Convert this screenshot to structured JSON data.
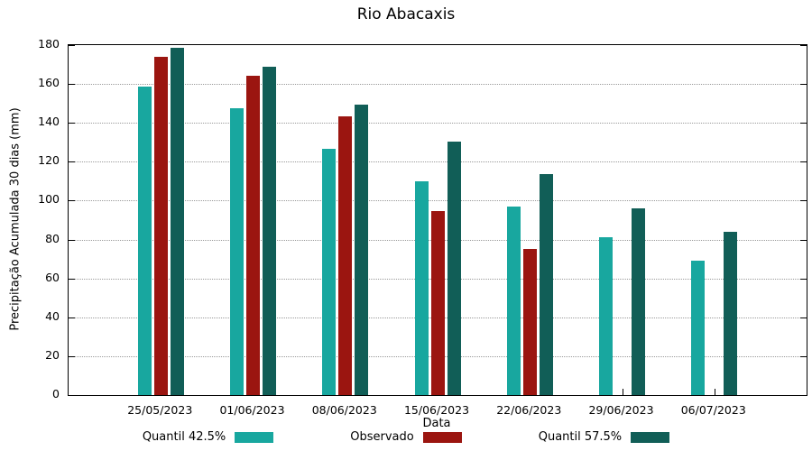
{
  "title": "Rio Abacaxis",
  "chart_data": {
    "type": "bar",
    "title": "Rio Abacaxis",
    "xlabel": "Data",
    "ylabel": "Precipitação Acumulada 30 dias (mm)",
    "ylim": [
      0,
      180
    ],
    "ytick_step": 20,
    "grid": true,
    "legend_position": "bottom",
    "categories": [
      "25/05/2023",
      "01/06/2023",
      "08/06/2023",
      "15/06/2023",
      "22/06/2023",
      "29/06/2023",
      "06/07/2023"
    ],
    "series": [
      {
        "name": "Quantil 42.5%",
        "color": "#18a79f",
        "values": [
          158.5,
          147.5,
          126.5,
          110,
          97,
          81,
          69
        ]
      },
      {
        "name": "Observado",
        "color": "#9b1510",
        "values": [
          174,
          164,
          143.5,
          94.5,
          75,
          null,
          null
        ]
      },
      {
        "name": "Quantil 57.5%",
        "color": "#115e57",
        "values": [
          178.5,
          169,
          149.5,
          130.5,
          113.5,
          96,
          84
        ]
      }
    ],
    "ytick_labels": [
      "0",
      "20",
      "40",
      "60",
      "80",
      "100",
      "120",
      "140",
      "160",
      "180"
    ]
  }
}
